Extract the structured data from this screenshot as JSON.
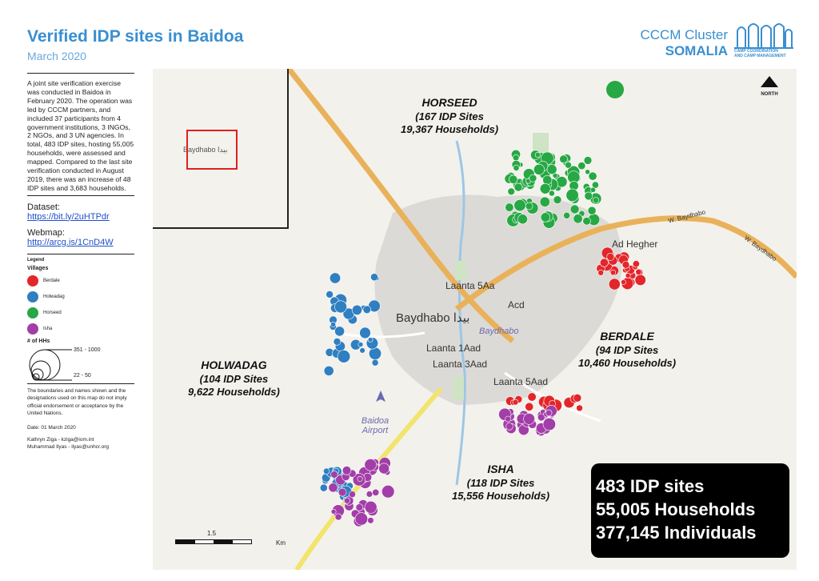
{
  "header": {
    "title": "Verified IDP sites in Baidoa",
    "subtitle": "March 2020",
    "cluster_line1": "CCCM Cluster",
    "cluster_line2": "SOMALIA",
    "logo_text_line1": "CAMP COORDINATION",
    "logo_text_line2": "AND CAMP MANAGEMENT"
  },
  "sidebar": {
    "description": "A joint site verification exercise was conducted in Baidoa in February 2020. The operation was led by CCCM partners, and included 37 participants from 4 government institutions, 3 INGOs, 2 NGOs, and 3 UN agencies. In total, 483 IDP sites, hosting 55,005 households, were assessed and mapped. Compared to the last site verification conducted in August 2019, there was an increase of 48 IDP sites and 3,683 households.",
    "dataset_label": "Dataset:",
    "dataset_link": "https://bit.ly/2uHTPdr",
    "webmap_label": "Webmap:",
    "webmap_link": "http://arcg.is/1CnD4W",
    "legend_title": "Legend",
    "villages_title": "Villages",
    "villages": [
      {
        "label": "Berdale",
        "color": "#e3262a"
      },
      {
        "label": "Holwadag",
        "color": "#2f7fc1"
      },
      {
        "label": "Horseed",
        "color": "#27a844"
      },
      {
        "label": "Isha",
        "color": "#a23ea8"
      }
    ],
    "hh_title": "# of HHs",
    "hh_max": "351 - 1000",
    "hh_min": "22 - 50",
    "disclaimer": "The boundaries and names shown and the designations used on this map do not imply official endorsement or acceptance by the United Nations.",
    "date": "Date: 01 March 2020",
    "contact1": "Kathryn Ziga - kziga@iom.int",
    "contact2": "Muhammad Ilyas - ilyas@unhcr.org"
  },
  "map": {
    "inset_label": "Baydhabo بيدا",
    "north_label": "NORTH",
    "regions": [
      {
        "name": "HORSEED",
        "sites": "(167 IDP Sites",
        "households": "19,367 Households)"
      },
      {
        "name": "BERDALE",
        "sites": "(94 IDP Sites",
        "households": "10,460 Households)"
      },
      {
        "name": "HOLWADAG",
        "sites": "(104 IDP Sites",
        "households": "9,622 Households)"
      },
      {
        "name": "ISHA",
        "sites": "(118 IDP Sites",
        "households": "15,556 Households)"
      }
    ],
    "places": {
      "baydhabo": "Baydhabo بيدا",
      "baydhabo_italic": "Baydhabo",
      "laanta5aa": "Laanta 5Aa",
      "acd": "Acd",
      "laanta1aad": "Laanta 1Aad",
      "laanta3aad": "Laanta 3Aad",
      "laanta5aad": "Laanta 5Aad",
      "adhegher": "Ad Hegher",
      "w_baydhabo_1": "W. Baydhabo",
      "w_baydhabo_2": "W. Baydhabo",
      "airport": "Baidoa Airport"
    },
    "scale_mid": "1.5",
    "scale_unit": "Km"
  },
  "summary": {
    "sites": "483 IDP sites",
    "households": "55,005 Households",
    "individuals": "377,145 Individuals"
  },
  "colors": {
    "accent": "#3a8fd0",
    "berdale": "#e3262a",
    "holwadag": "#2f7fc1",
    "horseed": "#27a844",
    "isha": "#a23ea8"
  }
}
